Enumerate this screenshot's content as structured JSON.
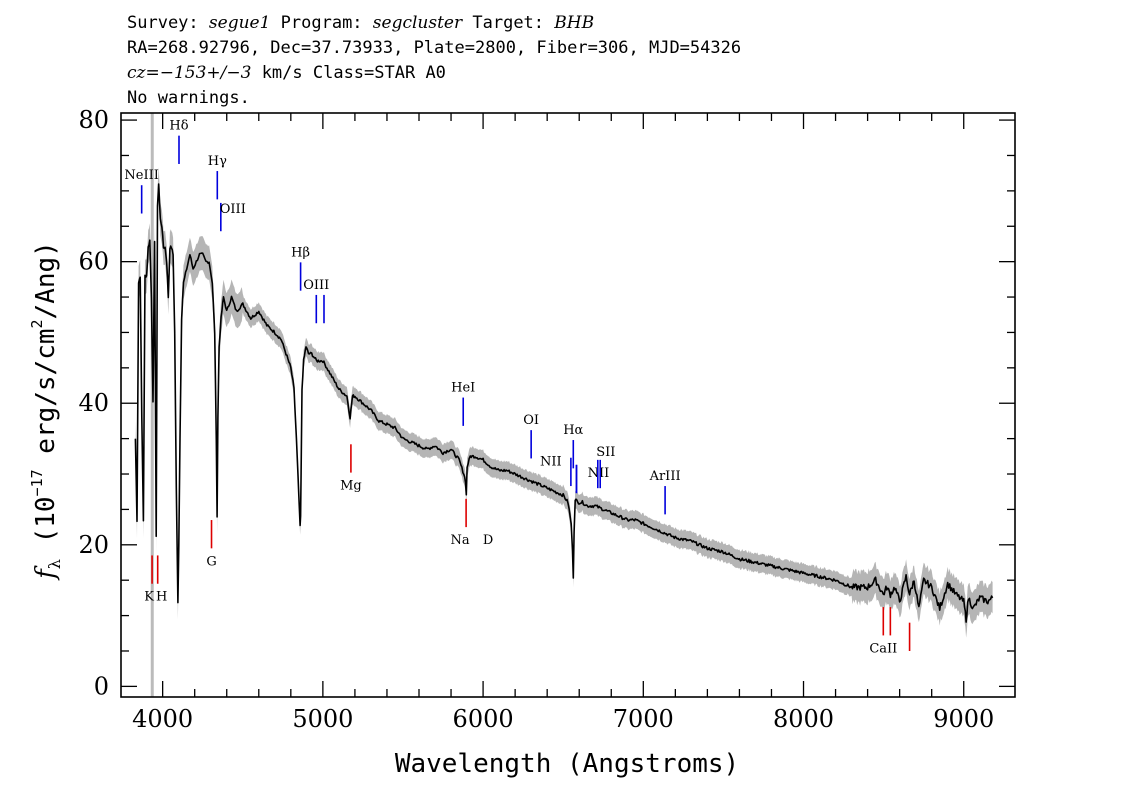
{
  "header": {
    "line1": {
      "survey_label": "Survey:",
      "survey": "segue1",
      "program_label": "Program:",
      "program": "segcluster",
      "target_label": "Target:",
      "target": "BHB"
    },
    "line2": "RA=268.92796, Dec=37.73933, Plate=2800, Fiber=306, MJD=54326",
    "line3": {
      "cz": "cz=−153+/−3",
      "rest": " km/s Class=STAR A0"
    },
    "line4": "No warnings."
  },
  "colors": {
    "spectrum": "#000000",
    "error_band": "#b5b5b5",
    "emission_lines": "#0000dd",
    "absorption_lines": "#dd0000",
    "marker_band": "#bbbbbb"
  },
  "chart_data": {
    "type": "line",
    "xlabel": "Wavelength (Angstroms)",
    "ylabel": "fλ (10⁻¹⁷ erg/s/cm²/Ang)",
    "xlim": [
      3740,
      9320
    ],
    "ylim": [
      -1.5,
      81
    ],
    "x_ticks": [
      4000,
      5000,
      6000,
      7000,
      8000,
      9000
    ],
    "y_ticks": [
      0,
      20,
      40,
      60,
      80
    ],
    "vertical_marker_x": 3935,
    "series": [
      {
        "x": [
          3830,
          3840,
          3850,
          3860,
          3870,
          3880,
          3890,
          3900,
          3910,
          3920,
          3930,
          3940,
          3950,
          3960,
          3968,
          3975,
          3985,
          3995,
          4005,
          4015,
          4025,
          4035,
          4045,
          4055,
          4065,
          4075,
          4085,
          4095,
          4101,
          4108,
          4118,
          4130,
          4150,
          4170,
          4190,
          4210,
          4230,
          4250,
          4270,
          4290,
          4310,
          4325,
          4335,
          4340,
          4345,
          4352,
          4365,
          4380,
          4400,
          4430,
          4460,
          4500,
          4550,
          4600,
          4650,
          4700,
          4740,
          4770,
          4800,
          4820,
          4835,
          4850,
          4858,
          4861,
          4864,
          4870,
          4880,
          4895,
          4910,
          4930,
          4960,
          5000,
          5050,
          5100,
          5150,
          5170,
          5185,
          5200,
          5250,
          5300,
          5350,
          5400,
          5450,
          5500,
          5550,
          5600,
          5650,
          5700,
          5750,
          5800,
          5850,
          5880,
          5890,
          5895,
          5900,
          5920,
          5950,
          6000,
          6050,
          6100,
          6150,
          6200,
          6250,
          6300,
          6350,
          6400,
          6450,
          6500,
          6530,
          6550,
          6558,
          6563,
          6568,
          6575,
          6590,
          6620,
          6650,
          6700,
          6750,
          6800,
          6850,
          6900,
          6950,
          7000,
          7050,
          7100,
          7150,
          7200,
          7300,
          7400,
          7500,
          7600,
          7700,
          7800,
          7900,
          8000,
          8100,
          8200,
          8300,
          8400,
          8450,
          8498,
          8520,
          8542,
          8570,
          8600,
          8640,
          8662,
          8690,
          8720,
          8750,
          8800,
          8850,
          8900,
          8950,
          9000,
          9015,
          9030,
          9060,
          9100,
          9150,
          9180
        ],
        "y": [
          35,
          23.5,
          57,
          58,
          38,
          23.5,
          58,
          58,
          62,
          63,
          55,
          40,
          63,
          21,
          68,
          71,
          66,
          65,
          62,
          62,
          60,
          55,
          62,
          62,
          61,
          50,
          28,
          12,
          20,
          35,
          52,
          57,
          59,
          61,
          59,
          60,
          61,
          61,
          60,
          60,
          57,
          50,
          35,
          24,
          38,
          48,
          52,
          55,
          53,
          55,
          53,
          54,
          52,
          53,
          51,
          50,
          49,
          47,
          45,
          42,
          35,
          27,
          22.5,
          24,
          30,
          42,
          46,
          48,
          47,
          47,
          46,
          46,
          44,
          42,
          41,
          38,
          41,
          41,
          40,
          39,
          37.5,
          37,
          36.5,
          35,
          34.5,
          34,
          33.5,
          34,
          33,
          33.5,
          32,
          30,
          29,
          27,
          31,
          32.5,
          32.5,
          32,
          31,
          30.5,
          30.5,
          30,
          29.5,
          29,
          28.5,
          28,
          27.5,
          27,
          26,
          23,
          19,
          15.5,
          22,
          26.5,
          26,
          26,
          25.5,
          25.5,
          25,
          24.5,
          24,
          23.5,
          23.5,
          23,
          22.5,
          22,
          21.5,
          21,
          20.5,
          19.5,
          19,
          18,
          17.5,
          17,
          16.5,
          16,
          15.5,
          15,
          14,
          14,
          15,
          13,
          14,
          13,
          14,
          12,
          15.5,
          13,
          15,
          11,
          15,
          14,
          11,
          14.5,
          13,
          12,
          9.5,
          12.5,
          11,
          12.5,
          12,
          12.5
        ]
      }
    ],
    "line_markers": [
      {
        "label": "NeIII",
        "type": "emission",
        "x": 3869,
        "y_range": [
          66.8,
          70.8
        ]
      },
      {
        "label": "Hδ",
        "type": "emission",
        "x": 4102,
        "y_range": [
          73.8,
          77.8
        ]
      },
      {
        "label": "Hγ",
        "type": "emission",
        "x": 4341,
        "y_range": [
          68.8,
          72.8
        ]
      },
      {
        "label": "OIII",
        "type": "emission",
        "x": 4363,
        "y_range": [
          64.3,
          68.3
        ]
      },
      {
        "label": "Hβ",
        "type": "emission",
        "x": 4861,
        "y_range": [
          55.9,
          59.9
        ]
      },
      {
        "label": "OIII",
        "type": "emission",
        "x": 4959,
        "y_range": [
          51.3,
          55.3
        ]
      },
      {
        "label": "",
        "type": "emission",
        "x": 5007,
        "y_range": [
          51.3,
          55.3
        ]
      },
      {
        "label": "HeI",
        "type": "emission",
        "x": 5876,
        "y_range": [
          36.8,
          40.8
        ]
      },
      {
        "label": "OI",
        "type": "emission",
        "x": 6300,
        "y_range": [
          32.2,
          36.2
        ]
      },
      {
        "label": "NII",
        "type": "emission",
        "x": 6548,
        "y_range": [
          28.3,
          32.3
        ]
      },
      {
        "label": "Hα",
        "type": "emission",
        "x": 6563,
        "y_range": [
          30.8,
          34.8
        ]
      },
      {
        "label": "",
        "type": "emission",
        "x": 6583,
        "y_range": [
          27.3,
          31.3
        ]
      },
      {
        "label": "NII",
        "type": "emission",
        "x": 6583,
        "y_range": [
          27.3,
          31.3
        ]
      },
      {
        "label": "SII",
        "type": "emission",
        "x": 6716,
        "y_range": [
          28.0,
          32.0
        ]
      },
      {
        "label": "",
        "type": "emission",
        "x": 6731,
        "y_range": [
          28.0,
          32.0
        ]
      },
      {
        "label": "ArIII",
        "type": "emission",
        "x": 7136,
        "y_range": [
          24.3,
          28.3
        ]
      },
      {
        "label": "K",
        "type": "absorption",
        "x": 3934,
        "y_range": [
          14.5,
          18.5
        ]
      },
      {
        "label": "H",
        "type": "absorption",
        "x": 3969,
        "y_range": [
          14.5,
          18.5
        ]
      },
      {
        "label": "G",
        "type": "absorption",
        "x": 4305,
        "y_range": [
          19.5,
          23.5
        ]
      },
      {
        "label": "Mg",
        "type": "absorption",
        "x": 5175,
        "y_range": [
          30.2,
          34.2
        ]
      },
      {
        "label": "Na",
        "type": "absorption",
        "x": 5894,
        "y_range": [
          22.5,
          26.5
        ]
      },
      {
        "label": "CaII",
        "type": "absorption",
        "x": 8498,
        "y_range": [
          7.2,
          11.2
        ]
      },
      {
        "label": "",
        "type": "absorption",
        "x": 8542,
        "y_range": [
          7.2,
          11.2
        ]
      },
      {
        "label": "",
        "type": "absorption",
        "x": 8662,
        "y_range": [
          5.0,
          9.0
        ]
      }
    ]
  }
}
